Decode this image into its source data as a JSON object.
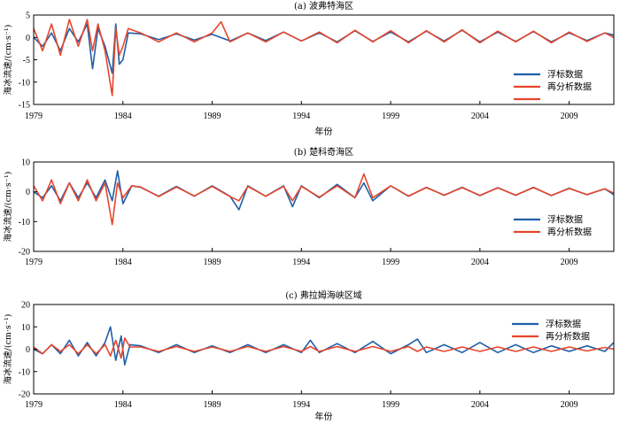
{
  "colors": {
    "buoy": "#1f5fa8",
    "reanalysis": "#e8452c"
  },
  "chart_data": [
    {
      "type": "line",
      "title": "(a) 波弗特海区",
      "xlabel": "年份",
      "ylabel": "海冰流速/(cm·s⁻¹)",
      "xlim": [
        1979,
        2011.5
      ],
      "ylim": [
        -15,
        5
      ],
      "xticks": [
        "1979",
        "1984",
        "1989",
        "1994",
        "1999",
        "2004",
        "2009"
      ],
      "yticks": [
        "5",
        "0",
        "-5",
        "-10",
        "-15"
      ],
      "yticks_values": [
        5,
        0,
        -5,
        -10,
        -15
      ],
      "legend": [
        "浮标数据",
        "再分析数据",
        ""
      ],
      "series": [
        {
          "name": "浮标数据",
          "x": [
            1979.0,
            1979.5,
            1980.0,
            1980.5,
            1981.0,
            1981.5,
            1982.0,
            1982.3,
            1982.6,
            1983.0,
            1983.4,
            1983.6,
            1983.8,
            1984.0,
            1984.3,
            1985,
            1986,
            1987,
            1988,
            1989,
            1990,
            1991,
            1992,
            1993,
            1994,
            1995,
            1996,
            1997,
            1998,
            1999,
            2000,
            2001,
            2002,
            2003,
            2004,
            2005,
            2006,
            2007,
            2008,
            2009,
            2010,
            2011,
            2011.5
          ],
          "y": [
            0,
            -2,
            1,
            -3,
            2,
            -1,
            3,
            -7,
            2,
            -2,
            -8,
            3,
            -6,
            -5,
            1,
            0.8,
            -0.5,
            0.8,
            -0.6,
            0.7,
            -0.8,
            1,
            -0.7,
            1.2,
            -0.8,
            1,
            -1,
            1.5,
            -0.9,
            1.2,
            -1,
            1.4,
            -0.8,
            1.6,
            -1,
            1.2,
            -0.9,
            1.3,
            -1,
            1,
            -0.7,
            1,
            0.5
          ]
        },
        {
          "name": "再分析数据",
          "x": [
            1979.0,
            1979.5,
            1980.0,
            1980.5,
            1981.0,
            1981.5,
            1982.0,
            1982.3,
            1982.6,
            1983.0,
            1983.4,
            1983.6,
            1983.8,
            1984.0,
            1984.3,
            1985,
            1986,
            1987,
            1988,
            1989,
            1989.5,
            1990,
            1991,
            1992,
            1993,
            1994,
            1995,
            1996,
            1997,
            1998,
            1999,
            2000,
            2001,
            2002,
            2003,
            2004,
            2005,
            2006,
            2007,
            2008,
            2009,
            2010,
            2011,
            2011.5
          ],
          "y": [
            2,
            -3,
            3,
            -4,
            4,
            -2,
            4,
            -3,
            3,
            -3,
            -13,
            2,
            -4,
            -2,
            2,
            1,
            -1,
            1,
            -1,
            1,
            3.5,
            -1,
            1,
            -1,
            1.2,
            -0.8,
            1.2,
            -1.2,
            1.6,
            -1,
            1.5,
            -1.2,
            1.5,
            -1,
            1.7,
            -1.2,
            1.4,
            -1,
            1.4,
            -1.2,
            1.2,
            -0.9,
            1,
            0
          ]
        }
      ]
    },
    {
      "type": "line",
      "title": "(b) 楚科奇海区",
      "xlabel": "",
      "ylabel": "海冰流速/(cm·s⁻¹)",
      "xlim": [
        1979,
        2011.5
      ],
      "ylim": [
        -20,
        10
      ],
      "xticks": [
        "1979",
        "1984",
        "1989",
        "1994",
        "1999",
        "2004",
        "2009"
      ],
      "yticks": [
        "10",
        "0",
        "-10",
        "-20"
      ],
      "yticks_values": [
        10,
        0,
        -10,
        -20
      ],
      "legend": [
        "浮标数据",
        "再分析数据"
      ],
      "series": [
        {
          "name": "浮标数据",
          "x": [
            1979.0,
            1979.5,
            1980.0,
            1980.5,
            1981.0,
            1981.5,
            1982.0,
            1982.5,
            1983.0,
            1983.4,
            1983.7,
            1984.0,
            1984.5,
            1985,
            1986,
            1987,
            1988,
            1989,
            1990,
            1990.5,
            1991,
            1992,
            1993,
            1993.5,
            1994,
            1995,
            1996,
            1997,
            1997.5,
            1998,
            1999,
            2000,
            2001,
            2002,
            2003,
            2004,
            2005,
            2006,
            2007,
            2008,
            2009,
            2010,
            2011,
            2011.5
          ],
          "y": [
            0,
            -2,
            2,
            -3,
            3,
            -2,
            3,
            -2,
            4,
            -3,
            7,
            -4,
            2,
            1.5,
            -1.5,
            1.8,
            -1.5,
            2,
            -1.5,
            -6,
            2,
            -1.5,
            2,
            -5,
            2,
            -2,
            2.5,
            -2,
            3,
            -3,
            2,
            -1.5,
            1.5,
            -1.2,
            1.5,
            -1.3,
            1.4,
            -1.2,
            1.5,
            -1.3,
            1.2,
            -1,
            1,
            -1
          ]
        },
        {
          "name": "再分析数据",
          "x": [
            1979.0,
            1979.5,
            1980.0,
            1980.5,
            1981.0,
            1981.5,
            1982.0,
            1982.5,
            1983.0,
            1983.4,
            1983.7,
            1984.0,
            1984.5,
            1985,
            1986,
            1987,
            1988,
            1989,
            1990,
            1990.5,
            1991,
            1992,
            1993,
            1993.5,
            1994,
            1995,
            1996,
            1997,
            1997.5,
            1998,
            1999,
            2000,
            2001,
            2002,
            2003,
            2004,
            2005,
            2006,
            2007,
            2008,
            2009,
            2010,
            2011,
            2011.5
          ],
          "y": [
            2,
            -3,
            4,
            -4,
            3,
            -3,
            4,
            -3,
            3,
            -11,
            3,
            -2,
            2,
            1.6,
            -1.6,
            1.6,
            -1.4,
            1.8,
            -1.6,
            -3,
            1.8,
            -1.5,
            1.8,
            -3,
            1.8,
            -1.8,
            2,
            -2,
            6,
            -2,
            2,
            -1.4,
            1.4,
            -1.1,
            1.4,
            -1.2,
            1.3,
            -1.1,
            1.4,
            -1.2,
            1.1,
            -0.9,
            1,
            -0.5
          ]
        }
      ]
    },
    {
      "type": "line",
      "title": "(c) 弗拉姆海峡区域",
      "xlabel": "年份",
      "ylabel": "海冰流速/(cm·s⁻¹)",
      "xlim": [
        1979,
        2011.5
      ],
      "ylim": [
        -20,
        20
      ],
      "xticks": [
        "1979",
        "1984",
        "1989",
        "1994",
        "1999",
        "2004",
        "2009"
      ],
      "yticks": [
        "20",
        "10",
        "0",
        "-10",
        "-20"
      ],
      "yticks_values": [
        20,
        10,
        0,
        -10,
        -20
      ],
      "legend": [
        "浮标数据",
        "再分析数据"
      ],
      "series": [
        {
          "name": "浮标数据",
          "x": [
            1979.0,
            1979.5,
            1980.0,
            1980.5,
            1981.0,
            1981.5,
            1982.0,
            1982.5,
            1983.0,
            1983.3,
            1983.6,
            1983.9,
            1984.1,
            1984.4,
            1985,
            1986,
            1987,
            1988,
            1989,
            1990,
            1991,
            1992,
            1993,
            1994,
            1994.5,
            1995,
            1996,
            1997,
            1998,
            1999,
            2000,
            2000.5,
            2001,
            2002,
            2003,
            2004,
            2005,
            2006,
            2007,
            2008,
            2009,
            2010,
            2011,
            2011.5
          ],
          "y": [
            0,
            -2,
            2,
            -2,
            4,
            -3,
            3,
            -3,
            3,
            10,
            -5,
            6,
            -7,
            2,
            1.5,
            -1.5,
            2,
            -1.5,
            1.5,
            -1.5,
            2,
            -1.5,
            2,
            -1.5,
            4,
            -1.5,
            2.5,
            -1.5,
            3.5,
            -2,
            2,
            4.5,
            -1.5,
            2,
            -1.5,
            3,
            -1.5,
            2,
            -1.5,
            1.5,
            -1,
            1.5,
            -1,
            3
          ]
        },
        {
          "name": "再分析数据",
          "x": [
            1979.0,
            1979.5,
            1980.0,
            1980.5,
            1981.0,
            1981.5,
            1982.0,
            1982.5,
            1983.0,
            1983.3,
            1983.6,
            1983.9,
            1984.1,
            1984.4,
            1985,
            1986,
            1987,
            1988,
            1989,
            1990,
            1991,
            1992,
            1993,
            1994,
            1994.5,
            1995,
            1996,
            1997,
            1998,
            1999,
            2000,
            2000.5,
            2001,
            2002,
            2003,
            2004,
            2005,
            2006,
            2007,
            2008,
            2009,
            2010,
            2011,
            2011.5
          ],
          "y": [
            1,
            -2,
            2,
            -1,
            2,
            -2,
            2,
            -2,
            2,
            -3,
            4,
            -4,
            5,
            1,
            1,
            -1,
            1.2,
            -1,
            1,
            -1,
            1.2,
            -1,
            1.2,
            -1,
            1.2,
            -1,
            1.2,
            -1,
            1.2,
            -1,
            1.2,
            -1,
            1,
            -1,
            1,
            -1,
            1,
            -1,
            1,
            -1,
            1,
            -0.8,
            0.8,
            0
          ]
        }
      ]
    }
  ]
}
